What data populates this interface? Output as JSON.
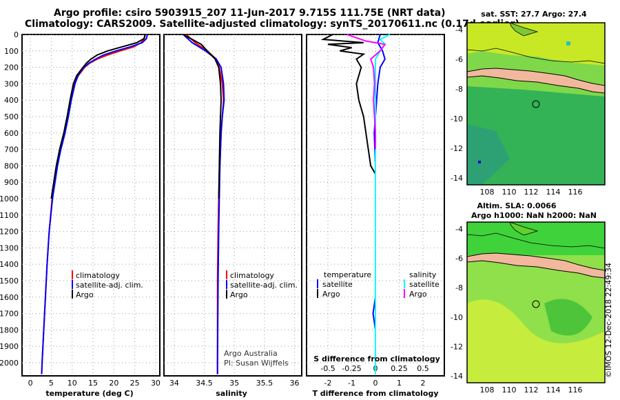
{
  "header": {
    "line1": "Argo profile: csiro 5903915_207 11-Jun-2017 9.715S 111.75E (NRT data)",
    "line2": "Climatology: CARS2009. Satellite-adjusted climatology: synTS_20170611.nc (0.17d earlier)"
  },
  "credit": "©IMOS 12-Dec-2018 22:49:34",
  "depth_ticks": [
    "0",
    "100",
    "200",
    "300",
    "400",
    "500",
    "600",
    "700",
    "800",
    "900",
    "1000",
    "1100",
    "1200",
    "1300",
    "1400",
    "1500",
    "1600",
    "1700",
    "1800",
    "1900",
    "2000"
  ],
  "colors": {
    "climatology": "#ff0000",
    "satellite": "#0000ff",
    "argo": "#000000",
    "salinity_satellite": "#00ffff",
    "salinity_argo": "#ff00ff"
  },
  "legend_profiles": {
    "climatology": "climatology",
    "satellite": "satellite-adj. clim.",
    "argo": "Argo"
  },
  "legend_diff": {
    "temperature": "temperature",
    "salinity": "salinity",
    "satellite": "satellite",
    "argo": "Argo"
  },
  "salinity_note": {
    "line1": "Argo Australia",
    "line2": "PI: Susan Wijffels"
  },
  "map_sst": {
    "title": "sat. SST: 27.7 Argo: 27.4",
    "yticks": [
      "-4",
      "-6",
      "-8",
      "-10",
      "-12",
      "-14"
    ],
    "xticks": [
      "108",
      "110",
      "112",
      "114",
      "116"
    ]
  },
  "map_sla": {
    "title1": "Altim. SLA: 0.0066",
    "title2": "Argo h1000: NaN h2000: NaN",
    "yticks": [
      "-4",
      "-6",
      "-8",
      "-10",
      "-12",
      "-14"
    ],
    "xticks": [
      "108",
      "110",
      "112",
      "114",
      "116"
    ]
  },
  "chart_data": [
    {
      "type": "line",
      "xlabel": "temperature (deg C)",
      "ylabel": "",
      "xticks": [
        "0",
        "5",
        "10",
        "15",
        "20",
        "25",
        "30"
      ],
      "xlim": [
        -2,
        31
      ],
      "ylim": [
        2080,
        0
      ],
      "series": [
        {
          "name": "climatology",
          "depth": [
            0,
            25,
            50,
            75,
            100,
            125,
            150,
            175,
            200,
            250,
            300,
            400,
            500,
            600,
            700,
            800,
            900,
            1000,
            1200,
            1400,
            1600,
            1800,
            2000,
            2070
          ],
          "values": [
            27.5,
            27.3,
            26.5,
            24.8,
            21.5,
            18.5,
            16.0,
            14.2,
            13.0,
            11.5,
            10.6,
            9.7,
            9.0,
            8.2,
            7.2,
            6.4,
            5.8,
            5.2,
            4.5,
            4.0,
            3.6,
            3.2,
            2.8,
            2.7
          ]
        },
        {
          "name": "satellite-adj. clim.",
          "depth": [
            0,
            25,
            50,
            75,
            100,
            125,
            150,
            175,
            200,
            250,
            300,
            400,
            500,
            600,
            700,
            800,
            900,
            1000,
            1200,
            1400,
            1600,
            1800,
            2000,
            2070
          ],
          "values": [
            28.0,
            27.8,
            26.8,
            24.0,
            20.5,
            17.5,
            15.6,
            14.0,
            12.8,
            11.4,
            10.7,
            9.8,
            9.1,
            8.3,
            7.3,
            6.5,
            5.9,
            5.3,
            4.5,
            4.0,
            3.6,
            3.2,
            2.8,
            2.7
          ]
        },
        {
          "name": "Argo",
          "depth": [
            0,
            25,
            50,
            75,
            100,
            125,
            150,
            175,
            200,
            250,
            300,
            400,
            500,
            600,
            700,
            800,
            900,
            1000
          ],
          "values": [
            27.5,
            27.2,
            25.5,
            22.0,
            18.5,
            16.0,
            14.5,
            13.4,
            12.6,
            11.1,
            10.3,
            9.5,
            8.8,
            8.0,
            7.0,
            6.2,
            5.6,
            5.0
          ]
        }
      ]
    },
    {
      "type": "line",
      "xlabel": "salinity",
      "ylabel": "",
      "xticks": [
        "34",
        "34.5",
        "35",
        "35.5",
        "36"
      ],
      "xlim": [
        33.83,
        36.12
      ],
      "ylim": [
        2080,
        0
      ],
      "series": [
        {
          "name": "climatology",
          "depth": [
            0,
            50,
            100,
            150,
            200,
            300,
            400,
            500,
            600,
            800,
            1000,
            1200,
            1500,
            2000,
            2070
          ],
          "values": [
            34.2,
            34.35,
            34.55,
            34.7,
            34.75,
            34.8,
            34.82,
            34.8,
            34.78,
            34.76,
            34.74,
            34.73,
            34.72,
            34.72,
            34.72
          ]
        },
        {
          "name": "satellite-adj. clim.",
          "depth": [
            0,
            50,
            100,
            150,
            200,
            300,
            400,
            500,
            600,
            800,
            1000,
            1200,
            1500,
            2000,
            2070
          ],
          "values": [
            34.15,
            34.3,
            34.52,
            34.7,
            34.78,
            34.82,
            34.83,
            34.8,
            34.78,
            34.76,
            34.75,
            34.74,
            34.73,
            34.72,
            34.72
          ]
        },
        {
          "name": "Argo",
          "depth": [
            0,
            30,
            60,
            100,
            150,
            200,
            300,
            400,
            500,
            600,
            800,
            1000
          ],
          "values": [
            34.15,
            34.3,
            34.45,
            34.55,
            34.68,
            34.74,
            34.77,
            34.78,
            34.77,
            34.76,
            34.75,
            34.74
          ]
        }
      ]
    },
    {
      "type": "line",
      "xlabel": "T difference from climatology",
      "ylabel": "",
      "xticks": [
        "-2",
        "-1",
        "0",
        "1",
        "2"
      ],
      "secondary_xlabel": "S difference from climatology",
      "secondary_xticks": [
        "-0.5",
        "-0.25",
        "0",
        "0.25",
        "0.5"
      ],
      "xlim": [
        -2.9,
        2.9
      ],
      "ylim": [
        2080,
        0
      ],
      "series": [
        {
          "name": "temperature satellite",
          "depth": [
            0,
            50,
            100,
            150,
            200,
            300,
            400,
            500,
            600,
            800,
            1000,
            1200,
            1400,
            1600,
            1700,
            1800,
            2000,
            2070
          ],
          "values": [
            0.2,
            0.1,
            0.3,
            0.4,
            0.2,
            0.1,
            0.05,
            0.0,
            -0.05,
            0.0,
            0.0,
            0.0,
            0.0,
            0.0,
            -0.1,
            0.0,
            0.0,
            0.0
          ]
        },
        {
          "name": "temperature Argo",
          "depth": [
            0,
            30,
            50,
            60,
            80,
            100,
            120,
            150,
            200,
            300,
            400,
            500,
            600,
            700,
            800,
            850
          ],
          "values": [
            -1.8,
            -2.2,
            -0.5,
            -2.0,
            -1.0,
            -1.5,
            -0.5,
            -0.8,
            -0.6,
            -0.8,
            -0.7,
            -0.5,
            -0.4,
            -0.3,
            -0.2,
            0.0
          ]
        },
        {
          "name": "salinity satellite",
          "depth": [
            0,
            30,
            60,
            100,
            150,
            200,
            300,
            500,
            700,
            1000,
            1500,
            2000,
            2070
          ],
          "values": [
            0.15,
            0.05,
            0.1,
            0.05,
            0.0,
            0.0,
            0.0,
            0.0,
            0.0,
            0.0,
            0.0,
            0.0,
            0.0
          ]
        },
        {
          "name": "salinity Argo",
          "depth": [
            0,
            40,
            60,
            100,
            150,
            200,
            300,
            400,
            500,
            600,
            700
          ],
          "values": [
            -0.3,
            -0.1,
            0.1,
            0.05,
            -0.05,
            -0.02,
            -0.01,
            -0.02,
            -0.01,
            0.0,
            0.0
          ]
        }
      ]
    }
  ]
}
